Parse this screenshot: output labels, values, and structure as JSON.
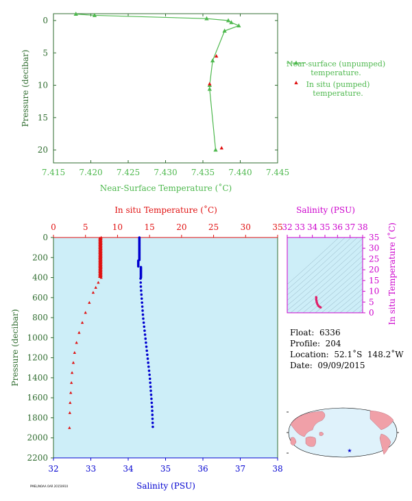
{
  "colors": {
    "green": "#4db84d",
    "dark_green": "#2e6b2e",
    "red": "#e01010",
    "blue": "#0000d0",
    "magenta": "#cc00cc",
    "panel_fill": "#cdeef8",
    "pink": "#f0a0a8",
    "map_ocean": "#dff2fb",
    "pink_track": "#e0206a"
  },
  "info": {
    "float": "Float:  6336",
    "profile": "Profile:  204",
    "location": "Location:  52.1˚S  148.2˚W",
    "date": "Date:  09/09/2015"
  },
  "footer_code": "PMEL/NOAA OAR 20150910",
  "chart_data": [
    {
      "type": "line",
      "xlabel": "Near-Surface Temperature (˚C)",
      "ylabel": "Pressure (decibar)",
      "xlim": [
        7.415,
        7.445
      ],
      "ylim": [
        22,
        0
      ],
      "xticks": [
        "7.415",
        "7.420",
        "7.425",
        "7.430",
        "7.435",
        "7.440",
        "7.445"
      ],
      "yticks": [
        "0",
        "5",
        "10",
        "15",
        "20"
      ],
      "series": [
        {
          "name": "Near-surface (unpumped) temperature.",
          "marker": "triangle",
          "x": [
            7.418,
            7.4205,
            7.4355,
            7.4384,
            7.4388,
            7.4398,
            7.4379,
            7.4363,
            7.4359,
            7.4359,
            7.4367
          ],
          "y": [
            -1.0,
            -0.8,
            -0.3,
            0.0,
            0.3,
            0.8,
            1.6,
            6.2,
            10.0,
            10.6,
            20.0
          ]
        },
        {
          "name": "In situ (pumped) temperature.",
          "marker": "triangle",
          "x": [
            7.4368,
            7.4359,
            7.4375
          ],
          "y": [
            5.5,
            9.8,
            19.7
          ]
        }
      ],
      "legend": [
        "Near-surface (unpumped)",
        "temperature.",
        "In situ (pumped)",
        "temperature."
      ]
    },
    {
      "type": "line",
      "ylabel": "Pressure (decibar)",
      "ylim": [
        2200,
        0
      ],
      "yticks": [
        "0",
        "200",
        "400",
        "600",
        "800",
        "1000",
        "1200",
        "1400",
        "1600",
        "1800",
        "2000",
        "2200"
      ],
      "temperature_axis": {
        "label": "In situ Temperature (˚C)",
        "xlim": [
          0,
          35
        ],
        "ticks": [
          "0",
          "5",
          "10",
          "15",
          "20",
          "25",
          "30",
          "35"
        ]
      },
      "salinity_axis": {
        "label": "Salinity (PSU)",
        "xlim": [
          32,
          38
        ],
        "ticks": [
          "32",
          "33",
          "34",
          "35",
          "36",
          "37",
          "38"
        ]
      },
      "series": [
        {
          "name": "In situ Temperature",
          "marker": "triangle",
          "x": [
            7.3,
            7.3,
            7.3,
            7.3,
            7.2,
            7.0,
            6.6,
            6.2,
            5.6,
            5.0,
            4.5,
            4.0,
            3.6,
            3.3,
            3.1,
            2.9,
            2.8,
            2.7,
            2.6,
            2.55,
            2.5
          ],
          "y": [
            5,
            100,
            200,
            300,
            400,
            450,
            500,
            550,
            650,
            750,
            850,
            950,
            1050,
            1150,
            1250,
            1350,
            1450,
            1550,
            1650,
            1750,
            1900
          ]
        },
        {
          "name": "Salinity",
          "marker": "dot",
          "x": [
            34.3,
            34.3,
            34.31,
            34.3,
            34.34,
            34.33,
            34.33,
            34.34,
            34.36,
            34.38,
            34.4,
            34.43,
            34.46,
            34.49,
            34.52,
            34.55,
            34.58,
            34.6,
            34.62,
            34.64,
            34.66
          ],
          "y": [
            5,
            100,
            200,
            250,
            300,
            350,
            400,
            500,
            600,
            700,
            800,
            900,
            1000,
            1100,
            1200,
            1300,
            1400,
            1500,
            1600,
            1700,
            1900
          ]
        }
      ]
    },
    {
      "type": "scatter",
      "xlabel": "Salinity (PSU)",
      "ylabel": "In situ Temperature (˚C)",
      "xlim": [
        32,
        38
      ],
      "ylim": [
        0,
        35
      ],
      "xticks": [
        "32",
        "33",
        "34",
        "35",
        "36",
        "37",
        "38"
      ],
      "yticks": [
        "0",
        "5",
        "10",
        "15",
        "20",
        "25",
        "30",
        "35"
      ],
      "points": {
        "x": [
          34.3,
          34.32,
          34.3,
          34.33,
          34.36,
          34.4,
          34.46,
          34.52,
          34.58,
          34.62,
          34.66
        ],
        "y": [
          7.3,
          7.0,
          6.3,
          5.5,
          4.7,
          4.0,
          3.4,
          3.0,
          2.8,
          2.6,
          2.5
        ]
      }
    }
  ]
}
